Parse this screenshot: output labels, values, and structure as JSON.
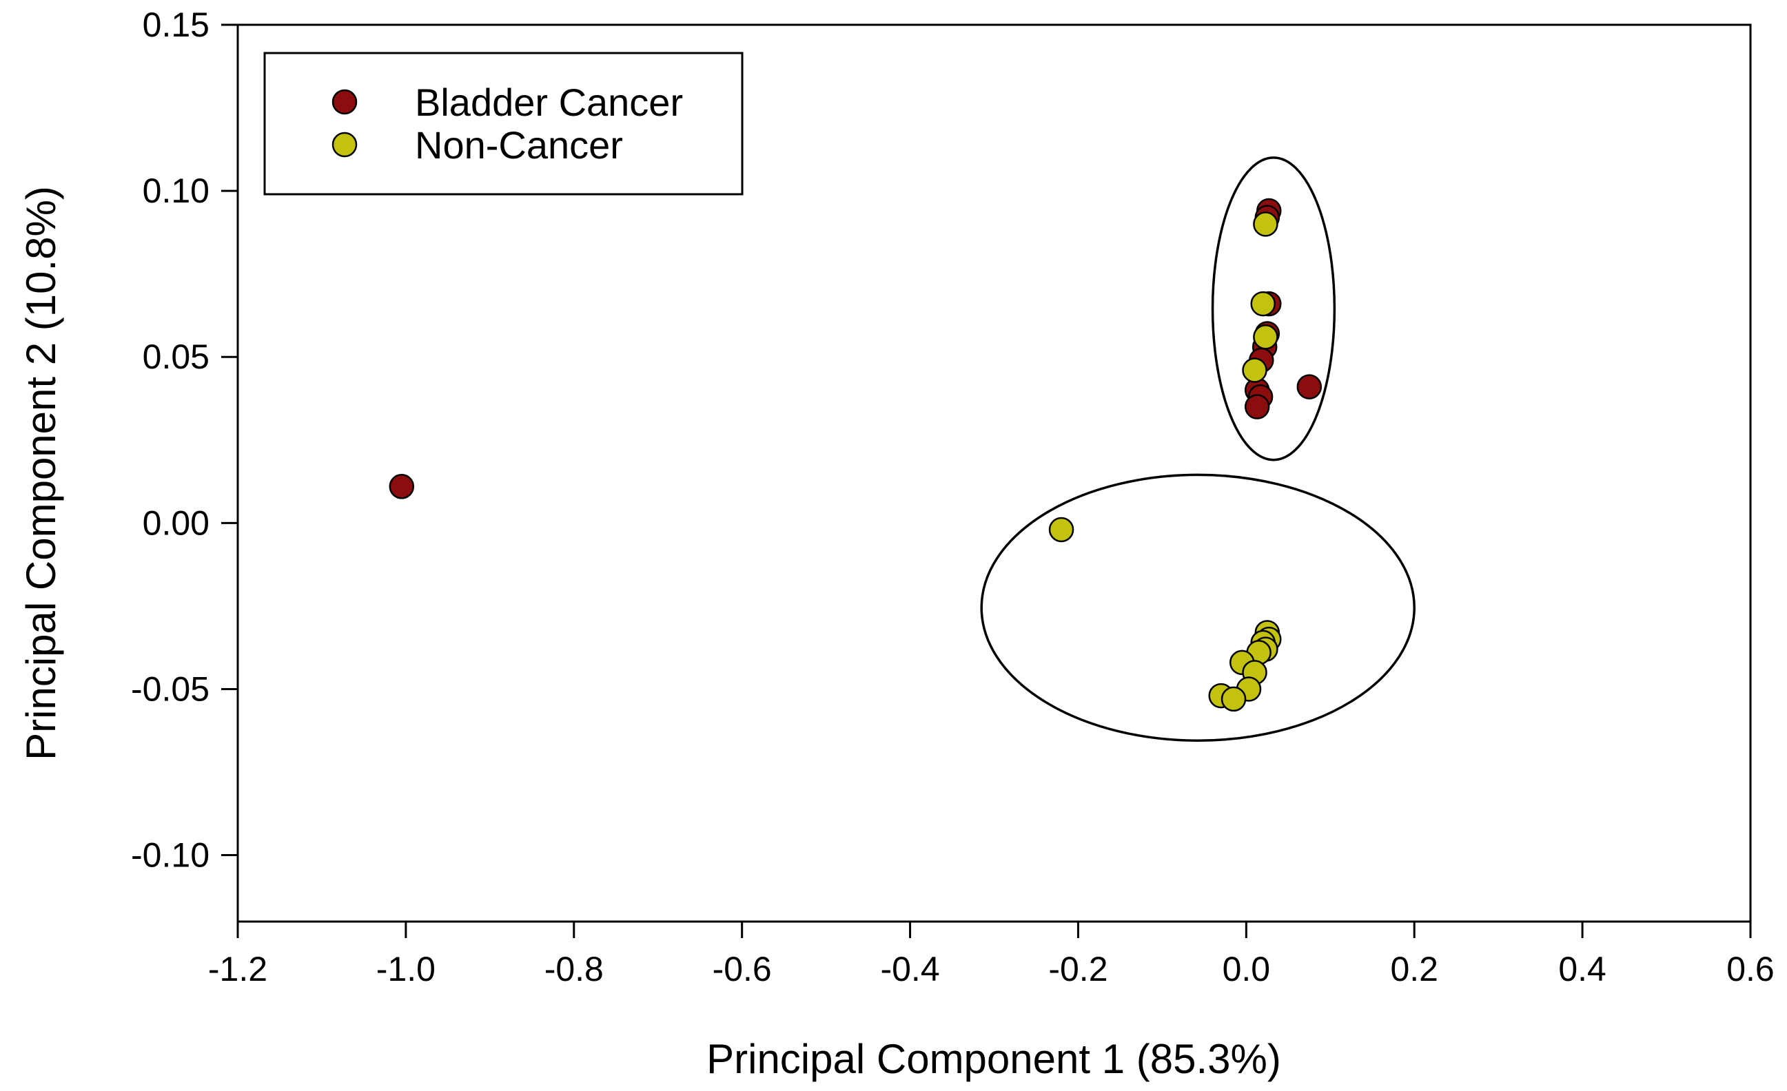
{
  "chart_data": {
    "type": "scatter",
    "title": "",
    "xlabel": "Principal Component 1 (85.3%)",
    "ylabel": "Principal Component 2 (10.8%)",
    "xlim": [
      -1.2,
      0.6
    ],
    "ylim": [
      -0.12,
      0.15
    ],
    "xticks": [
      -1.2,
      -1.0,
      -0.8,
      -0.6,
      -0.4,
      -0.2,
      0.0,
      0.2,
      0.4,
      0.6
    ],
    "xtick_labels": [
      "-1.2",
      "-1.0",
      "-0.8",
      "-0.6",
      "-0.4",
      "-0.2",
      "0.0",
      "0.2",
      "0.4",
      "0.6"
    ],
    "yticks": [
      -0.1,
      -0.05,
      0.0,
      0.05,
      0.1,
      0.15
    ],
    "ytick_labels": [
      "-0.10",
      "-0.05",
      "0.00",
      "0.05",
      "0.10",
      "0.15"
    ],
    "grid": false,
    "legend_position": "top-left",
    "series": [
      {
        "name": "Bladder Cancer",
        "color": "#8b0d0d",
        "points": [
          {
            "x": -1.005,
            "y": 0.011
          },
          {
            "x": 0.027,
            "y": 0.094
          },
          {
            "x": 0.025,
            "y": 0.092
          },
          {
            "x": 0.027,
            "y": 0.066
          },
          {
            "x": 0.025,
            "y": 0.057
          },
          {
            "x": 0.022,
            "y": 0.053
          },
          {
            "x": 0.018,
            "y": 0.049
          },
          {
            "x": 0.013,
            "y": 0.04
          },
          {
            "x": 0.017,
            "y": 0.038
          },
          {
            "x": 0.013,
            "y": 0.035
          },
          {
            "x": 0.075,
            "y": 0.041
          }
        ]
      },
      {
        "name": "Non-Cancer",
        "color": "#c3c30f",
        "points": [
          {
            "x": 0.023,
            "y": 0.09
          },
          {
            "x": 0.02,
            "y": 0.066
          },
          {
            "x": 0.023,
            "y": 0.056
          },
          {
            "x": 0.01,
            "y": 0.046
          },
          {
            "x": -0.22,
            "y": -0.002
          },
          {
            "x": 0.025,
            "y": -0.033
          },
          {
            "x": 0.027,
            "y": -0.035
          },
          {
            "x": 0.02,
            "y": -0.036
          },
          {
            "x": 0.023,
            "y": -0.038
          },
          {
            "x": 0.015,
            "y": -0.039
          },
          {
            "x": -0.005,
            "y": -0.042
          },
          {
            "x": 0.01,
            "y": -0.045
          },
          {
            "x": 0.003,
            "y": -0.05
          },
          {
            "x": -0.03,
            "y": -0.052
          },
          {
            "x": -0.015,
            "y": -0.053
          }
        ]
      }
    ],
    "annotations": [
      {
        "type": "ellipse",
        "cx": 0.0325,
        "cy": 0.0645,
        "rx": 0.0725,
        "ry": 0.0455
      },
      {
        "type": "ellipse",
        "cx": -0.0575,
        "cy": -0.0255,
        "rx": 0.2575,
        "ry": 0.04
      }
    ]
  }
}
